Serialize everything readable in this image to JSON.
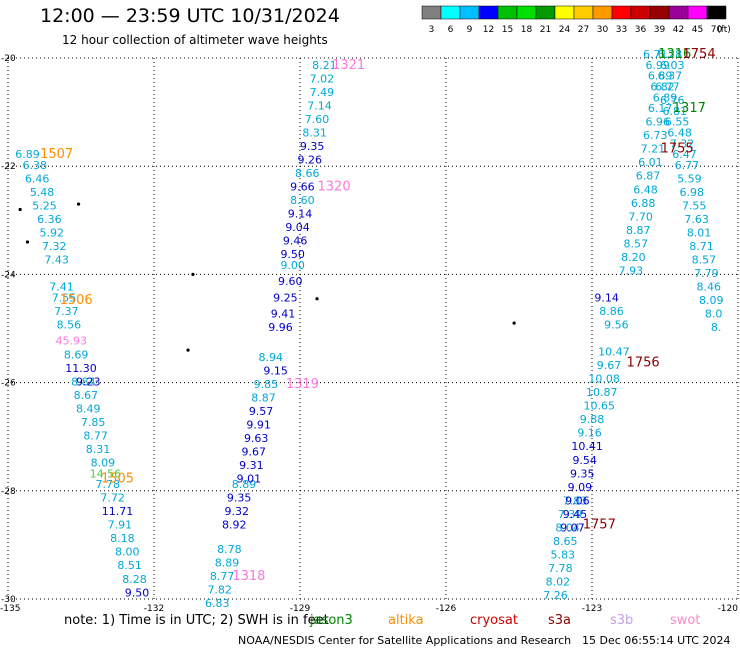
{
  "header": {
    "title": "12:00 — 23:59 UTC 10/31/2024",
    "subtitle": "12 hour collection of altimeter wave heights"
  },
  "colorbar": {
    "colors": [
      "#808080",
      "#00ffff",
      "#00bfff",
      "#0000ff",
      "#00c000",
      "#00e000",
      "#009900",
      "#ffff00",
      "#ffcc00",
      "#ff9900",
      "#ff0000",
      "#cc0000",
      "#990000",
      "#990099",
      "#ff00ff",
      "#000000"
    ],
    "labels": [
      "3",
      "6",
      "9",
      "12",
      "15",
      "18",
      "21",
      "24",
      "27",
      "30",
      "33",
      "36",
      "39",
      "42",
      "45",
      "70",
      "(ft)"
    ]
  },
  "chart_data": {
    "type": "scatter",
    "title": "12:00 — 23:59 UTC 10/31/2024",
    "subtitle": "12 hour collection of altimeter wave heights",
    "xlim": [
      -135,
      -120
    ],
    "ylim": [
      -30,
      -20
    ],
    "x_ticks": [
      "-135",
      "-132",
      "-129",
      "-126",
      "-123",
      "-120"
    ],
    "y_ticks": [
      "-20",
      "-22",
      "-24",
      "-26",
      "-28",
      "-30"
    ],
    "grid": true,
    "series": [
      {
        "color": "#00a8d8",
        "points": [
          {
            "x": -134.6,
            "y": -21.85,
            "v": "6.89"
          },
          {
            "x": -134.45,
            "y": -22.05,
            "v": "6.38"
          },
          {
            "x": -134.4,
            "y": -22.3,
            "v": "6.46"
          },
          {
            "x": -134.3,
            "y": -22.55,
            "v": "5.48"
          },
          {
            "x": -134.25,
            "y": -22.8,
            "v": "5.25"
          },
          {
            "x": -134.15,
            "y": -23.05,
            "v": "6.36"
          },
          {
            "x": -134.1,
            "y": -23.3,
            "v": "5.92"
          },
          {
            "x": -134.05,
            "y": -23.55,
            "v": "7.32"
          },
          {
            "x": -134.0,
            "y": -23.8,
            "v": "7.43"
          },
          {
            "x": -133.9,
            "y": -24.3,
            "v": "7.41"
          },
          {
            "x": -133.85,
            "y": -24.5,
            "v": "7.55"
          },
          {
            "x": -133.8,
            "y": -24.75,
            "v": "7.37"
          },
          {
            "x": -133.75,
            "y": -25.0,
            "v": "8.56"
          },
          {
            "x": -133.6,
            "y": -25.55,
            "v": "8.69"
          },
          {
            "x": -133.45,
            "y": -26.05,
            "v": "8.84"
          },
          {
            "x": -133.4,
            "y": -26.3,
            "v": "8.67"
          },
          {
            "x": -133.35,
            "y": -26.55,
            "v": "8.49"
          },
          {
            "x": -133.25,
            "y": -26.8,
            "v": "7.85"
          },
          {
            "x": -133.2,
            "y": -27.05,
            "v": "8.77"
          },
          {
            "x": -133.15,
            "y": -27.3,
            "v": "8.31"
          },
          {
            "x": -133.05,
            "y": -27.55,
            "v": "8.09"
          },
          {
            "x": -132.95,
            "y": -27.95,
            "v": "7.78"
          },
          {
            "x": -132.85,
            "y": -28.2,
            "v": "7.72"
          },
          {
            "x": -132.7,
            "y": -28.7,
            "v": "7.91"
          },
          {
            "x": -132.65,
            "y": -28.95,
            "v": "8.18"
          },
          {
            "x": -132.55,
            "y": -29.2,
            "v": "8.00"
          },
          {
            "x": -132.5,
            "y": -29.45,
            "v": "8.51"
          },
          {
            "x": -132.4,
            "y": -29.7,
            "v": "8.28"
          }
        ]
      },
      {
        "color": "#0000cc",
        "points": [
          {
            "x": -133.5,
            "y": -25.8,
            "v": "11.30"
          },
          {
            "x": -133.35,
            "y": -26.05,
            "v": "9.23"
          },
          {
            "x": -132.75,
            "y": -28.45,
            "v": "11.71"
          },
          {
            "x": -132.35,
            "y": -29.95,
            "v": "9.50"
          }
        ]
      },
      {
        "color": "#ff77dd",
        "points": [
          {
            "x": -133.7,
            "y": -25.3,
            "v": "45.93"
          }
        ]
      },
      {
        "color": "#44cc44",
        "points": [
          {
            "x": -133.0,
            "y": -27.75,
            "v": "14.56"
          }
        ]
      },
      {
        "color": "#00a8d8",
        "points": [
          {
            "x": -128.5,
            "y": -20.2,
            "v": "8.21"
          },
          {
            "x": -128.55,
            "y": -20.45,
            "v": "7.02"
          },
          {
            "x": -128.55,
            "y": -20.7,
            "v": "7.49"
          },
          {
            "x": -128.6,
            "y": -20.95,
            "v": "7.14"
          },
          {
            "x": -128.65,
            "y": -21.2,
            "v": "7.60"
          },
          {
            "x": -128.7,
            "y": -21.45,
            "v": "8.31"
          },
          {
            "x": -128.85,
            "y": -22.2,
            "v": "8.66"
          },
          {
            "x": -128.95,
            "y": -22.7,
            "v": "8.60"
          },
          {
            "x": -129.15,
            "y": -23.9,
            "v": "9.00"
          },
          {
            "x": -129.6,
            "y": -25.6,
            "v": "8.94"
          },
          {
            "x": -129.7,
            "y": -26.1,
            "v": "9.85"
          },
          {
            "x": -129.75,
            "y": -26.35,
            "v": "8.87"
          },
          {
            "x": -130.15,
            "y": -27.95,
            "v": "8.89"
          },
          {
            "x": -130.45,
            "y": -29.15,
            "v": "8.78"
          },
          {
            "x": -130.5,
            "y": -29.4,
            "v": "8.89"
          },
          {
            "x": -130.6,
            "y": -29.65,
            "v": "8.77"
          },
          {
            "x": -130.65,
            "y": -29.9,
            "v": "7.82"
          },
          {
            "x": -130.7,
            "y": -30.15,
            "v": "6.83"
          }
        ]
      },
      {
        "color": "#0000cc",
        "points": [
          {
            "x": -128.75,
            "y": -21.7,
            "v": "9.35"
          },
          {
            "x": -128.8,
            "y": -21.95,
            "v": "9.26"
          },
          {
            "x": -128.95,
            "y": -22.45,
            "v": "9.66"
          },
          {
            "x": -129.0,
            "y": -22.95,
            "v": "9.14"
          },
          {
            "x": -129.05,
            "y": -23.2,
            "v": "9.04"
          },
          {
            "x": -129.1,
            "y": -23.45,
            "v": "9.46"
          },
          {
            "x": -129.15,
            "y": -23.7,
            "v": "9.50"
          },
          {
            "x": -129.2,
            "y": -24.2,
            "v": "9.60"
          },
          {
            "x": -129.3,
            "y": -24.5,
            "v": "9.25"
          },
          {
            "x": -129.35,
            "y": -24.8,
            "v": "9.41"
          },
          {
            "x": -129.4,
            "y": -25.05,
            "v": "9.96"
          },
          {
            "x": -129.5,
            "y": -25.85,
            "v": "9.15"
          },
          {
            "x": -129.8,
            "y": -26.6,
            "v": "9.57"
          },
          {
            "x": -129.85,
            "y": -26.85,
            "v": "9.91"
          },
          {
            "x": -129.9,
            "y": -27.1,
            "v": "9.63"
          },
          {
            "x": -129.95,
            "y": -27.35,
            "v": "9.67"
          },
          {
            "x": -130.0,
            "y": -27.6,
            "v": "9.31"
          },
          {
            "x": -130.05,
            "y": -27.85,
            "v": "9.01"
          },
          {
            "x": -130.25,
            "y": -28.2,
            "v": "9.35"
          },
          {
            "x": -130.3,
            "y": -28.45,
            "v": "9.32"
          },
          {
            "x": -130.35,
            "y": -28.7,
            "v": "8.92"
          }
        ]
      },
      {
        "color": "#00a8d8",
        "points": [
          {
            "x": -122.6,
            "y": -24.75,
            "v": "8.86"
          },
          {
            "x": -122.5,
            "y": -25.0,
            "v": "9.56"
          },
          {
            "x": -122.55,
            "y": -25.5,
            "v": "10.47"
          },
          {
            "x": -122.65,
            "y": -25.75,
            "v": "9.67"
          },
          {
            "x": -122.75,
            "y": -26.0,
            "v": "10.08"
          },
          {
            "x": -122.8,
            "y": -26.25,
            "v": "10.87"
          },
          {
            "x": -122.85,
            "y": -26.5,
            "v": "10.65"
          },
          {
            "x": -123.0,
            "y": -26.75,
            "v": "9.88"
          },
          {
            "x": -123.05,
            "y": -27.0,
            "v": "9.16"
          },
          {
            "x": -123.35,
            "y": -28.25,
            "v": "7.83"
          },
          {
            "x": -123.45,
            "y": -28.5,
            "v": "7.39"
          },
          {
            "x": -123.5,
            "y": -28.75,
            "v": "8.04"
          },
          {
            "x": -123.55,
            "y": -29.0,
            "v": "8.65"
          },
          {
            "x": -123.6,
            "y": -29.25,
            "v": "5.83"
          },
          {
            "x": -123.65,
            "y": -29.5,
            "v": "7.78"
          },
          {
            "x": -123.7,
            "y": -29.75,
            "v": "8.02"
          },
          {
            "x": -123.75,
            "y": -30.0,
            "v": "7.26"
          }
        ]
      },
      {
        "color": "#0000cc",
        "points": [
          {
            "x": -122.7,
            "y": -24.5,
            "v": "9.14"
          },
          {
            "x": -123.1,
            "y": -27.25,
            "v": "10.41"
          },
          {
            "x": -123.15,
            "y": -27.5,
            "v": "9.54"
          },
          {
            "x": -123.2,
            "y": -27.75,
            "v": "9.35"
          },
          {
            "x": -123.25,
            "y": -28.0,
            "v": "9.09"
          },
          {
            "x": -123.3,
            "y": -28.25,
            "v": "9.06"
          },
          {
            "x": -123.35,
            "y": -28.5,
            "v": "9.45"
          },
          {
            "x": -123.4,
            "y": -28.75,
            "v": "9.07"
          }
        ]
      },
      {
        "color": "#00a8d8",
        "points": [
          {
            "x": -121.7,
            "y": -20.0,
            "v": "6.71"
          },
          {
            "x": -121.65,
            "y": -20.2,
            "v": "6.99"
          },
          {
            "x": -121.6,
            "y": -20.4,
            "v": "6.89"
          },
          {
            "x": -121.55,
            "y": -20.6,
            "v": "6.82"
          },
          {
            "x": -121.5,
            "y": -20.8,
            "v": "6.89"
          },
          {
            "x": -121.6,
            "y": -21.0,
            "v": "6.17"
          },
          {
            "x": -121.65,
            "y": -21.25,
            "v": "6.96"
          },
          {
            "x": -121.7,
            "y": -21.5,
            "v": "6.73"
          },
          {
            "x": -121.75,
            "y": -21.75,
            "v": "7.21"
          },
          {
            "x": -121.8,
            "y": -22.0,
            "v": "6.01"
          },
          {
            "x": -121.85,
            "y": -22.25,
            "v": "6.87"
          },
          {
            "x": -121.9,
            "y": -22.5,
            "v": "6.48"
          },
          {
            "x": -121.95,
            "y": -22.75,
            "v": "6.88"
          },
          {
            "x": -122.0,
            "y": -23.0,
            "v": "7.70"
          },
          {
            "x": -122.05,
            "y": -23.25,
            "v": "8.87"
          },
          {
            "x": -122.1,
            "y": -23.5,
            "v": "8.57"
          },
          {
            "x": -122.15,
            "y": -23.75,
            "v": "8.20"
          },
          {
            "x": -122.2,
            "y": -24.0,
            "v": "7.93"
          },
          {
            "x": -121.4,
            "y": -20.0,
            "v": "6.28"
          },
          {
            "x": -121.35,
            "y": -20.2,
            "v": "6.03"
          },
          {
            "x": -121.4,
            "y": -20.4,
            "v": "6.37"
          },
          {
            "x": -121.45,
            "y": -20.6,
            "v": "6.77"
          },
          {
            "x": -121.35,
            "y": -20.85,
            "v": "6.76"
          },
          {
            "x": -121.3,
            "y": -21.05,
            "v": "6.81"
          },
          {
            "x": -121.25,
            "y": -21.25,
            "v": "6.55"
          },
          {
            "x": -121.2,
            "y": -21.45,
            "v": "6.48"
          },
          {
            "x": -121.15,
            "y": -21.65,
            "v": "7.32"
          },
          {
            "x": -121.1,
            "y": -21.85,
            "v": "6.47"
          },
          {
            "x": -121.05,
            "y": -22.05,
            "v": "6.77"
          },
          {
            "x": -121.0,
            "y": -22.3,
            "v": "5.59"
          },
          {
            "x": -120.95,
            "y": -22.55,
            "v": "6.98"
          },
          {
            "x": -120.9,
            "y": -22.8,
            "v": "7.55"
          },
          {
            "x": -120.85,
            "y": -23.05,
            "v": "7.63"
          },
          {
            "x": -120.8,
            "y": -23.3,
            "v": "8.01"
          },
          {
            "x": -120.75,
            "y": -23.55,
            "v": "8.71"
          },
          {
            "x": -120.7,
            "y": -23.8,
            "v": "8.57"
          },
          {
            "x": -120.65,
            "y": -24.05,
            "v": "7.79"
          },
          {
            "x": -120.6,
            "y": -24.3,
            "v": "8.46"
          },
          {
            "x": -120.55,
            "y": -24.55,
            "v": "8.09"
          },
          {
            "x": -120.5,
            "y": -24.8,
            "v": "8.0"
          },
          {
            "x": -120.45,
            "y": -25.05,
            "v": "8."
          }
        ]
      }
    ],
    "track_labels": [
      {
        "x": -134.0,
        "y": -21.85,
        "text": "1507",
        "color": "#ff8c00"
      },
      {
        "x": -133.6,
        "y": -24.55,
        "text": "1506",
        "color": "#ff8c00"
      },
      {
        "x": -132.75,
        "y": -27.85,
        "text": "1505",
        "color": "#ff8c00"
      },
      {
        "x": -128.0,
        "y": -20.2,
        "text": "1321",
        "color": "#ff77dd"
      },
      {
        "x": -128.3,
        "y": -22.45,
        "text": "1320",
        "color": "#ff77dd"
      },
      {
        "x": -128.95,
        "y": -26.1,
        "text": "1319",
        "color": "#ff77dd"
      },
      {
        "x": -130.05,
        "y": -29.65,
        "text": "1318",
        "color": "#ff77dd"
      },
      {
        "x": -121.3,
        "y": -20.0,
        "text": "1316",
        "color": "#008800"
      },
      {
        "x": -121.0,
        "y": -21.0,
        "text": "1317",
        "color": "#008800"
      },
      {
        "x": -120.8,
        "y": -20.0,
        "text": "1754",
        "color": "#8b0000"
      },
      {
        "x": -121.25,
        "y": -21.75,
        "text": "1755",
        "color": "#8b0000"
      },
      {
        "x": -121.95,
        "y": -25.7,
        "text": "1756",
        "color": "#8b0000"
      },
      {
        "x": -122.85,
        "y": -28.7,
        "text": "1757",
        "color": "#8b0000"
      }
    ],
    "islands": [
      {
        "x": -134.75,
        "y": -22.8
      },
      {
        "x": -134.6,
        "y": -23.4
      },
      {
        "x": -133.55,
        "y": -22.7
      },
      {
        "x": -131.2,
        "y": -24.0
      },
      {
        "x": -131.3,
        "y": -25.4
      },
      {
        "x": -128.65,
        "y": -24.45
      },
      {
        "x": -124.6,
        "y": -24.9
      }
    ]
  },
  "footer": {
    "note": "note:  1) Time is in UTC;  2) SWH is in feet",
    "credit": "NOAA/NESDIS Center for Satellite Applications and Research",
    "date": "15 Dec 06:55:14 UTC 2024",
    "satellites": [
      {
        "name": "jason3",
        "color": "#008800"
      },
      {
        "name": "altika",
        "color": "#ff8c00"
      },
      {
        "name": "cryosat",
        "color": "#cc0000"
      },
      {
        "name": "s3a",
        "color": "#8b0000"
      },
      {
        "name": "s3b",
        "color": "#c8a0e8"
      },
      {
        "name": "swot",
        "color": "#ff88cc"
      }
    ]
  }
}
